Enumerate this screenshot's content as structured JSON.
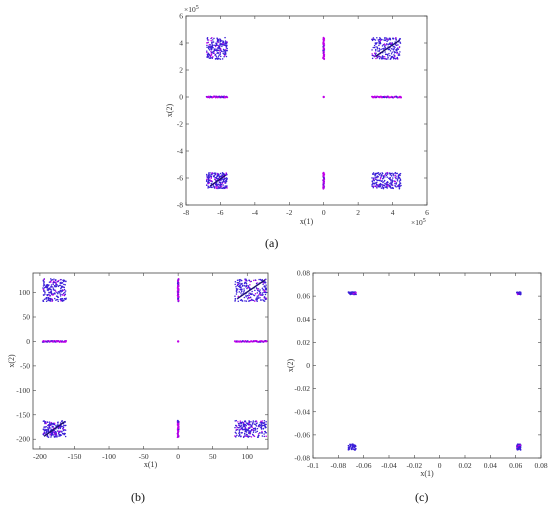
{
  "captions": [
    "(a)",
    "(b)",
    "(c)"
  ],
  "chart_data": [
    {
      "type": "scatter",
      "panel": "a",
      "title": "",
      "xlabel": "x(1)",
      "ylabel": "x(2)",
      "x_exponent_label": "×10",
      "x_exponent_power": "5",
      "y_exponent_label": "×10",
      "y_exponent_power": "5",
      "xlim": [
        -8,
        6
      ],
      "ylim": [
        -8,
        6
      ],
      "xticks": [
        "-8",
        "-6",
        "-4",
        "-2",
        "0",
        "2",
        "4",
        "6"
      ],
      "yticks": [
        "-8",
        "-6",
        "-4",
        "-2",
        "0",
        "2",
        "4",
        "6"
      ],
      "grid": false,
      "clusters": {
        "corner_blocks": [
          {
            "x": [
              -6.8,
              -5.6
            ],
            "y": [
              2.8,
              4.4
            ]
          },
          {
            "x": [
              2.8,
              4.5
            ],
            "y": [
              2.8,
              4.4
            ]
          },
          {
            "x": [
              -6.8,
              -5.6
            ],
            "y": [
              -6.8,
              -5.6
            ]
          },
          {
            "x": [
              2.8,
              4.5
            ],
            "y": [
              -6.8,
              -5.6
            ]
          }
        ],
        "horizontal_bars": [
          {
            "x": [
              -6.8,
              -5.6
            ],
            "y": 0
          },
          {
            "x": [
              2.8,
              4.5
            ],
            "y": 0
          }
        ],
        "vertical_bars": [
          {
            "x": 0,
            "y": [
              2.8,
              4.4
            ]
          },
          {
            "x": 0,
            "y": [
              -6.8,
              -5.6
            ]
          }
        ],
        "center_point": [
          0,
          0
        ],
        "diagonal_lines": [
          {
            "from": [
              3.0,
              3.0
            ],
            "to": [
              4.4,
              4.2
            ]
          },
          {
            "from": [
              -6.6,
              -6.6
            ],
            "to": [
              -5.7,
              -5.8
            ]
          }
        ]
      }
    },
    {
      "type": "scatter",
      "panel": "b",
      "title": "",
      "xlabel": "x(1)",
      "ylabel": "x(2)",
      "xlim": [
        -210,
        130
      ],
      "ylim": [
        -220,
        140
      ],
      "xticks": [
        "-200",
        "-150",
        "-100",
        "-50",
        "0",
        "50",
        "100"
      ],
      "yticks": [
        "-200",
        "-150",
        "-100",
        "-50",
        "0",
        "50",
        "100"
      ],
      "grid": false,
      "clusters": {
        "corner_blocks": [
          {
            "x": [
              -196,
              -162
            ],
            "y": [
              82,
              128
            ]
          },
          {
            "x": [
              82,
              128
            ],
            "y": [
              82,
              128
            ]
          },
          {
            "x": [
              -196,
              -162
            ],
            "y": [
              -196,
              -162
            ]
          },
          {
            "x": [
              82,
              128
            ],
            "y": [
              -196,
              -162
            ]
          }
        ],
        "horizontal_bars": [
          {
            "x": [
              -196,
              -162
            ],
            "y": 0
          },
          {
            "x": [
              82,
              128
            ],
            "y": 0
          }
        ],
        "vertical_bars": [
          {
            "x": 0,
            "y": [
              82,
              128
            ]
          },
          {
            "x": 0,
            "y": [
              -196,
              -162
            ]
          }
        ],
        "center_point": [
          0,
          0
        ],
        "diagonal_lines": [
          {
            "from": [
              86,
              88
            ],
            "to": [
              126,
              126
            ]
          },
          {
            "from": [
              -194,
              -194
            ],
            "to": [
              -164,
              -164
            ]
          }
        ]
      }
    },
    {
      "type": "scatter",
      "panel": "c",
      "title": "",
      "xlabel": "x(1)",
      "ylabel": "x(2)",
      "xlim": [
        -0.1,
        0.08
      ],
      "ylim": [
        -0.08,
        0.08
      ],
      "xticks": [
        "-0.1",
        "-0.08",
        "-0.06",
        "-0.04",
        "-0.02",
        "0",
        "0.02",
        "0.04",
        "0.06",
        "0.08"
      ],
      "yticks": [
        "-0.08",
        "-0.06",
        "-0.04",
        "-0.02",
        "0",
        "0.02",
        "0.04",
        "0.06",
        "0.08"
      ],
      "grid": false,
      "clusters": {
        "corner_blocks": [
          {
            "x": [
              -0.072,
              -0.066
            ],
            "y": [
              0.0615,
              0.0635
            ]
          },
          {
            "x": [
              0.061,
              0.064
            ],
            "y": [
              0.0615,
              0.0635
            ]
          },
          {
            "x": [
              -0.072,
              -0.066
            ],
            "y": [
              -0.073,
              -0.068
            ]
          },
          {
            "x": [
              0.061,
              0.064
            ],
            "y": [
              -0.073,
              -0.068
            ]
          }
        ]
      }
    }
  ],
  "colors": {
    "point_blue": "#3a1fd8",
    "point_magenta": "#c000e8",
    "axis": "#444444"
  }
}
